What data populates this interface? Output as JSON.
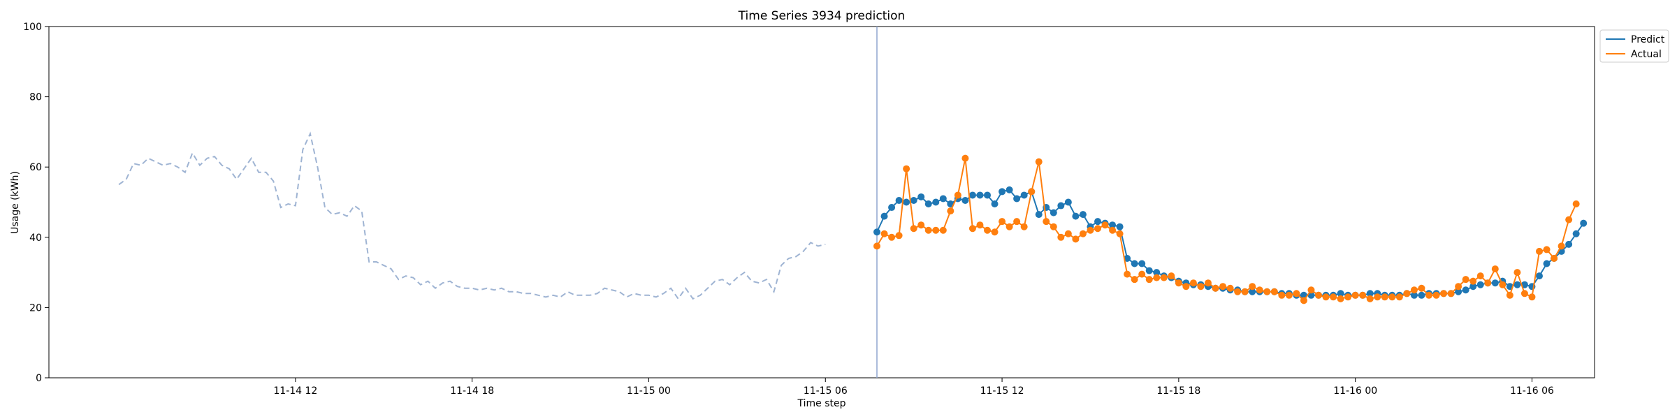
{
  "chart_data": {
    "type": "line",
    "title": "Time Series 3934 prediction",
    "xlabel": "Time step",
    "ylabel": "Usage (kWh)",
    "ylim": [
      0,
      100
    ],
    "y_ticks": [
      0,
      20,
      40,
      60,
      80,
      100
    ],
    "x_ticks": [
      {
        "at": 24,
        "label": "11-14 12"
      },
      {
        "at": 48,
        "label": "11-14 18"
      },
      {
        "at": 72,
        "label": "11-15 00"
      },
      {
        "at": 96,
        "label": "11-15 06"
      },
      {
        "at": 120,
        "label": "11-15 12"
      },
      {
        "at": 144,
        "label": "11-15 18"
      },
      {
        "at": 168,
        "label": "11-16 00"
      },
      {
        "at": 192,
        "label": "11-16 06"
      }
    ],
    "xlim": [
      -9.5,
      200.5
    ],
    "forecast_start": 103,
    "legend": {
      "position": "top-right",
      "entries": [
        "Predict",
        "Actual"
      ]
    },
    "colors": {
      "history": "#9fb4d3",
      "predict": "#1f77b4",
      "actual": "#ff7f0e",
      "divider": "#8fa6cf"
    },
    "history": {
      "x_start": 0,
      "values": [
        55,
        56.5,
        61,
        60.5,
        62.5,
        61.5,
        60.5,
        61,
        60,
        58.5,
        64,
        60.5,
        62.5,
        63,
        60.5,
        59.5,
        56.5,
        59.5,
        62.5,
        58.5,
        58.5,
        56,
        48.5,
        49.5,
        49,
        65,
        69.5,
        60,
        48.5,
        46.5,
        47,
        46,
        49,
        47.5,
        33,
        33,
        32,
        31,
        28,
        29,
        28.5,
        26.5,
        27.5,
        25.5,
        27,
        27.5,
        26,
        25.5,
        25.5,
        25,
        25.5,
        25,
        25.5,
        24.5,
        24.5,
        24,
        24,
        23.5,
        23,
        23.5,
        23,
        24.5,
        23.5,
        23.5,
        23.5,
        24,
        25.5,
        25,
        24.5,
        23,
        24,
        23.5,
        23.5,
        23,
        24,
        25.5,
        22.5,
        25.5,
        22.5,
        23.5,
        25.5,
        27.5,
        28,
        26.5,
        28.5,
        30,
        27.5,
        27,
        28,
        24.5,
        32,
        34,
        34.5,
        36,
        38.5,
        37.5,
        38
      ]
    },
    "series": [
      {
        "name": "Predict",
        "x_start": 103,
        "values": [
          41.5,
          46,
          48.5,
          50.5,
          50,
          50.5,
          51.5,
          49.5,
          50,
          51,
          49.5,
          51,
          50.5,
          52,
          52,
          52,
          49.5,
          53,
          53.5,
          51,
          52,
          53,
          46.5,
          48.5,
          47,
          49,
          50,
          46,
          46.5,
          43,
          44.5,
          44,
          43.5,
          43,
          34,
          32.5,
          32.5,
          30.5,
          30,
          29,
          28.5,
          27.5,
          27,
          26.5,
          26.5,
          26,
          25.5,
          25.5,
          25,
          25,
          24.5,
          24.5,
          24.5,
          24.5,
          24.5,
          24,
          24,
          23.5,
          23.5,
          23.5,
          23.5,
          23.5,
          23.5,
          24,
          23.5,
          23.5,
          23.5,
          24,
          24,
          23.5,
          23.5,
          23.5,
          24,
          23.5,
          23.5,
          24,
          24,
          24,
          24,
          24.5,
          25,
          26,
          26.5,
          27,
          27,
          27.5,
          26,
          26.5,
          26.5,
          26,
          29,
          32.5,
          34,
          36,
          38,
          41,
          44
        ]
      },
      {
        "name": "Actual",
        "x_start": 103,
        "values": [
          37.5,
          41,
          40,
          40.5,
          59.5,
          42.5,
          43.5,
          42,
          42,
          42,
          47.5,
          52,
          62.5,
          42.5,
          43.5,
          42,
          41.5,
          44.5,
          43,
          44.5,
          43,
          53,
          61.5,
          44.5,
          43,
          40,
          41,
          39.5,
          41,
          42,
          42.5,
          43.5,
          42,
          41,
          29.5,
          28,
          29.5,
          28,
          28.5,
          28.5,
          29,
          27,
          26,
          27,
          26,
          27,
          25.5,
          26,
          25.5,
          24.5,
          24.5,
          26,
          25,
          24.5,
          24.5,
          23.5,
          23.5,
          24,
          22,
          25,
          23.5,
          23,
          23,
          22.5,
          23,
          23.5,
          23.5,
          22.5,
          23,
          23,
          23,
          23,
          24,
          25,
          25.5,
          23.5,
          23.5,
          24,
          24,
          26,
          28,
          27.5,
          29,
          27,
          31,
          26.5,
          23.5,
          30,
          24,
          23,
          36,
          36.5,
          34,
          37.5,
          45,
          49.5
        ]
      }
    ]
  }
}
